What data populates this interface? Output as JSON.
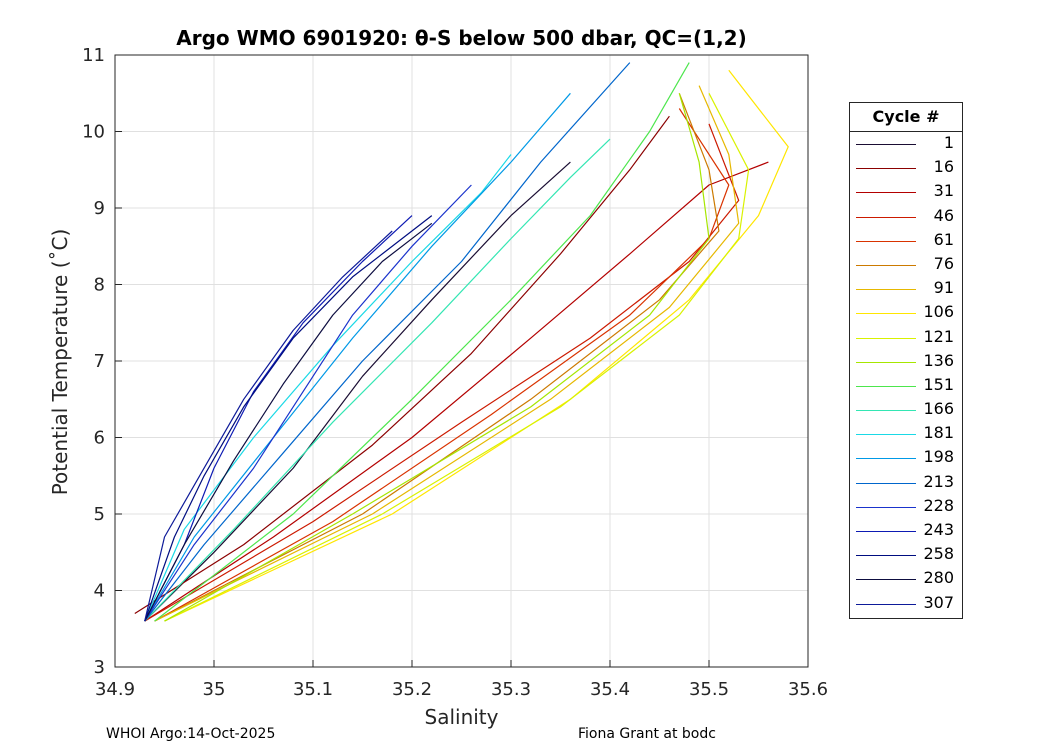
{
  "chart_data": {
    "type": "line",
    "title": "Argo WMO 6901920: θ-S below 500 dbar,  QC=(1,2)",
    "xlabel": "Salinity",
    "ylabel": "Potential Temperature (˚C)",
    "xlim": [
      34.9,
      35.6
    ],
    "ylim": [
      3,
      11
    ],
    "xticks": [
      "34.9",
      "35",
      "35.1",
      "35.2",
      "35.3",
      "35.4",
      "35.5",
      "35.6"
    ],
    "yticks": [
      "3",
      "4",
      "5",
      "6",
      "7",
      "8",
      "9",
      "10",
      "11"
    ],
    "grid": true,
    "legend_title": "Cycle #",
    "legend_position": "right",
    "series": [
      {
        "name": "1",
        "color": "#1a0d33",
        "x": [
          34.93,
          35.0,
          35.08,
          35.15,
          35.22,
          35.3,
          35.36
        ],
        "y": [
          3.6,
          4.5,
          5.6,
          6.8,
          7.8,
          8.9,
          9.6
        ]
      },
      {
        "name": "16",
        "color": "#8b0000",
        "x": [
          34.92,
          35.03,
          35.16,
          35.26,
          35.35,
          35.42,
          35.46
        ],
        "y": [
          3.7,
          4.6,
          5.9,
          7.1,
          8.4,
          9.5,
          10.2
        ]
      },
      {
        "name": "31",
        "color": "#b30000",
        "x": [
          34.93,
          35.06,
          35.2,
          35.32,
          35.42,
          35.5,
          35.56
        ],
        "y": [
          3.6,
          4.7,
          6.0,
          7.3,
          8.4,
          9.3,
          9.6
        ]
      },
      {
        "name": "46",
        "color": "#cc1a00",
        "x": [
          34.93,
          35.1,
          35.25,
          35.38,
          35.48,
          35.53,
          35.5
        ],
        "y": [
          3.6,
          4.9,
          6.2,
          7.3,
          8.3,
          9.1,
          10.1
        ]
      },
      {
        "name": "61",
        "color": "#d93300",
        "x": [
          34.94,
          35.12,
          35.28,
          35.42,
          35.5,
          35.52,
          35.47
        ],
        "y": [
          3.6,
          4.9,
          6.3,
          7.6,
          8.6,
          9.3,
          10.3
        ]
      },
      {
        "name": "76",
        "color": "#cc7a00",
        "x": [
          34.94,
          35.15,
          35.32,
          35.45,
          35.51,
          35.5,
          35.47
        ],
        "y": [
          3.6,
          5.0,
          6.5,
          7.8,
          8.7,
          9.5,
          10.5
        ]
      },
      {
        "name": "91",
        "color": "#e6b800",
        "x": [
          34.94,
          35.16,
          35.34,
          35.46,
          35.53,
          35.52,
          35.49
        ],
        "y": [
          3.6,
          5.0,
          6.5,
          7.7,
          8.8,
          9.7,
          10.6
        ]
      },
      {
        "name": "106",
        "color": "#ffe600",
        "x": [
          34.95,
          35.18,
          35.36,
          35.48,
          35.55,
          35.58,
          35.52
        ],
        "y": [
          3.6,
          5.0,
          6.5,
          7.8,
          8.9,
          9.8,
          10.8
        ]
      },
      {
        "name": "121",
        "color": "#d9f200",
        "x": [
          34.95,
          35.17,
          35.35,
          35.47,
          35.53,
          35.54,
          35.5
        ],
        "y": [
          3.6,
          5.0,
          6.4,
          7.6,
          8.6,
          9.5,
          10.5
        ]
      },
      {
        "name": "136",
        "color": "#a6e600",
        "x": [
          34.95,
          35.14,
          35.32,
          35.44,
          35.5,
          35.49,
          35.47
        ],
        "y": [
          3.6,
          5.0,
          6.4,
          7.6,
          8.6,
          9.6,
          10.5
        ]
      },
      {
        "name": "151",
        "color": "#4de64d",
        "x": [
          34.94,
          35.08,
          35.2,
          35.3,
          35.38,
          35.44,
          35.48
        ],
        "y": [
          3.6,
          5.0,
          6.5,
          7.8,
          8.9,
          10.0,
          10.9
        ]
      },
      {
        "name": "166",
        "color": "#33e6b3",
        "x": [
          34.93,
          35.02,
          35.12,
          35.22,
          35.3,
          35.36,
          35.4
        ],
        "y": [
          3.6,
          4.8,
          6.2,
          7.5,
          8.6,
          9.4,
          9.9
        ]
      },
      {
        "name": "181",
        "color": "#1ad9e6",
        "x": [
          34.93,
          34.97,
          35.04,
          35.12,
          35.2,
          35.27,
          35.3
        ],
        "y": [
          3.6,
          4.8,
          6.0,
          7.2,
          8.3,
          9.2,
          9.7
        ]
      },
      {
        "name": "198",
        "color": "#0099e6",
        "x": [
          34.93,
          34.98,
          35.06,
          35.14,
          35.22,
          35.3,
          35.36
        ],
        "y": [
          3.6,
          4.7,
          6.0,
          7.3,
          8.5,
          9.6,
          10.5
        ]
      },
      {
        "name": "213",
        "color": "#0066cc",
        "x": [
          34.93,
          34.99,
          35.07,
          35.15,
          35.25,
          35.33,
          35.42
        ],
        "y": [
          3.6,
          4.6,
          5.8,
          7.0,
          8.3,
          9.6,
          10.9
        ]
      },
      {
        "name": "228",
        "color": "#1a33cc",
        "x": [
          34.93,
          34.98,
          35.04,
          35.09,
          35.14,
          35.2,
          35.26
        ],
        "y": [
          3.6,
          4.6,
          5.6,
          6.6,
          7.6,
          8.5,
          9.3
        ]
      },
      {
        "name": "243",
        "color": "#0d1ab3",
        "x": [
          34.93,
          34.97,
          35.0,
          35.04,
          35.09,
          35.15,
          35.2
        ],
        "y": [
          3.6,
          4.6,
          5.6,
          6.6,
          7.5,
          8.3,
          8.9
        ]
      },
      {
        "name": "258",
        "color": "#000d80",
        "x": [
          34.93,
          34.96,
          34.99,
          35.03,
          35.08,
          35.14,
          35.22
        ],
        "y": [
          3.6,
          4.7,
          5.5,
          6.4,
          7.3,
          8.1,
          8.9
        ]
      },
      {
        "name": "280",
        "color": "#0d0d40",
        "x": [
          34.93,
          34.97,
          35.02,
          35.07,
          35.12,
          35.17,
          35.22
        ],
        "y": [
          3.6,
          4.6,
          5.7,
          6.7,
          7.6,
          8.3,
          8.8
        ]
      },
      {
        "name": "307",
        "color": "#0d1a99",
        "x": [
          34.93,
          34.95,
          34.99,
          35.03,
          35.08,
          35.13,
          35.18
        ],
        "y": [
          3.6,
          4.7,
          5.6,
          6.5,
          7.4,
          8.1,
          8.7
        ]
      }
    ]
  },
  "footer": {
    "left": "WHOI Argo:14-Oct-2025",
    "right": "Fiona Grant at bodc"
  }
}
